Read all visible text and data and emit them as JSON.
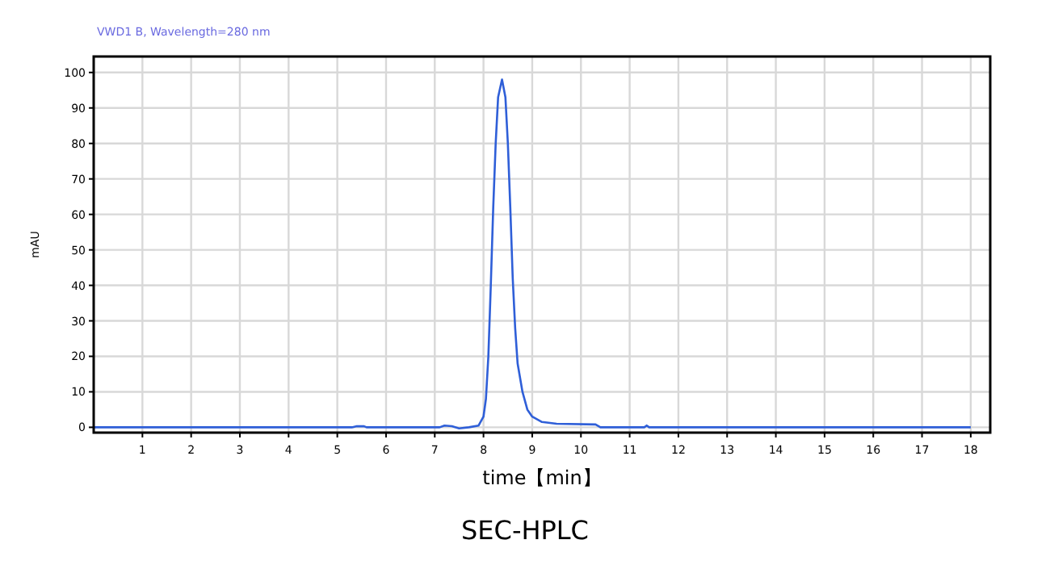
{
  "chart_data": {
    "type": "line",
    "title": "VWD1 B, Wavelength=280 nm",
    "xlabel": "time【min】",
    "ylabel": "mAU",
    "annotations": [
      "SEC-HPLC"
    ],
    "x": [
      0,
      5.3,
      5.4,
      5.55,
      5.6,
      7.1,
      7.2,
      7.35,
      7.5,
      7.7,
      7.9,
      8.0,
      8.05,
      8.1,
      8.15,
      8.2,
      8.25,
      8.3,
      8.38,
      8.45,
      8.5,
      8.55,
      8.6,
      8.65,
      8.7,
      8.8,
      8.9,
      9.0,
      9.2,
      9.5,
      10.3,
      10.4,
      11.3,
      11.35,
      11.4,
      18.0
    ],
    "series": [
      {
        "color": "#2f5fd8",
        "values": [
          0,
          0,
          0.3,
          0.3,
          0,
          0,
          0.5,
          0.3,
          -0.3,
          0,
          0.5,
          3,
          8,
          20,
          40,
          62,
          80,
          93,
          98,
          93,
          80,
          62,
          42,
          28,
          18,
          10,
          5,
          3,
          1.5,
          1,
          0.8,
          0,
          0,
          0.5,
          0,
          0
        ]
      }
    ],
    "xlim": [
      0,
      18.4
    ],
    "ylim": [
      -1.5,
      104.5
    ],
    "xticks": [
      1,
      2,
      3,
      4,
      5,
      6,
      7,
      8,
      9,
      10,
      11,
      12,
      13,
      14,
      15,
      16,
      17,
      18
    ],
    "yticks": [
      0,
      10,
      20,
      30,
      40,
      50,
      60,
      70,
      80,
      90,
      100
    ],
    "grid": true,
    "marker": "none",
    "line_style": "solid"
  }
}
